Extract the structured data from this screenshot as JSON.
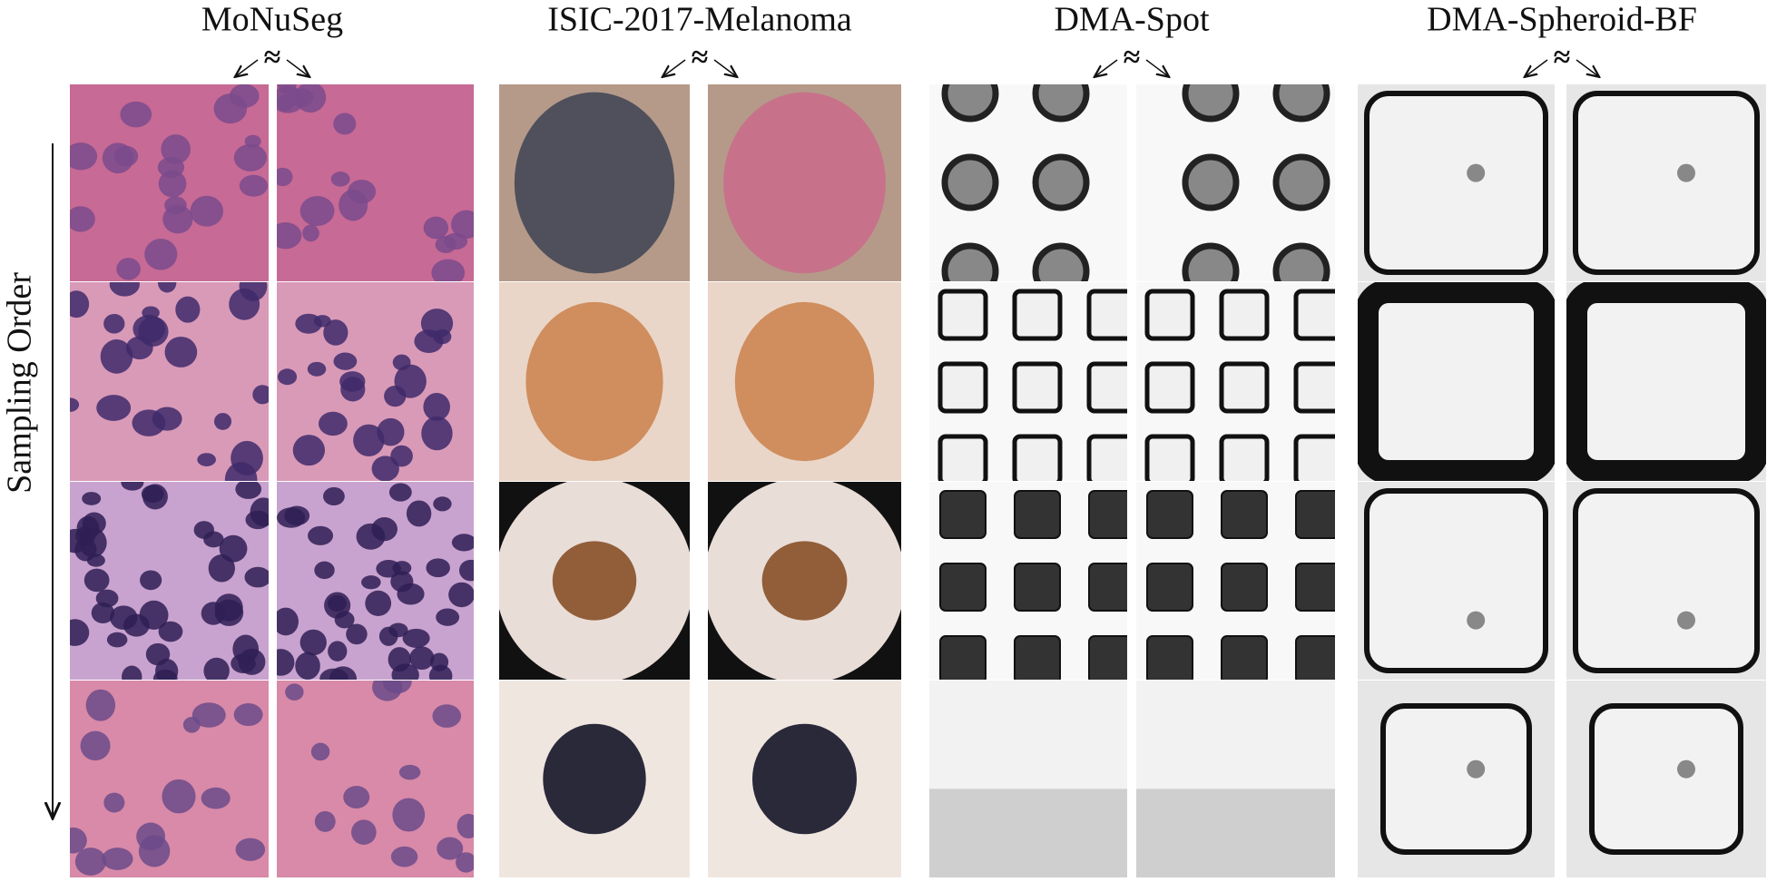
{
  "panels": [
    {
      "title": "MoNuSeg",
      "symbol": "≈"
    },
    {
      "title": "ISIC-2017-Melanoma",
      "symbol": "≈"
    },
    {
      "title": "DMA-Spot",
      "symbol": "≈"
    },
    {
      "title": "DMA-Spheroid-BF",
      "symbol": "≈"
    }
  ],
  "axis_label": "Sampling Order"
}
